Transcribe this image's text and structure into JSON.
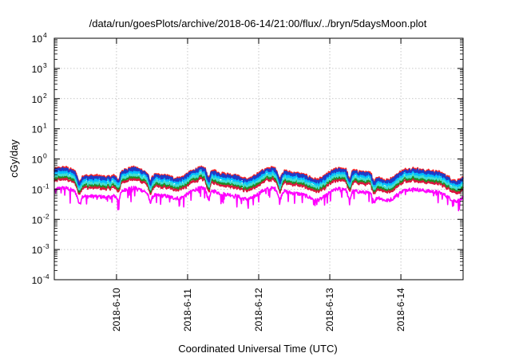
{
  "chart_data": {
    "type": "line",
    "title": "/data/run/goesPlots/archive/2018-06-14/21:00/flux/../bryn/5daysMoon.plot",
    "xlabel": "Coordinated Universal Time (UTC)",
    "ylabel": "cGy/day",
    "yscale": "log",
    "ylim": [
      0.0001,
      10000
    ],
    "xlim": [
      "2018-06-09T03:00",
      "2018-06-14T21:00"
    ],
    "grid": true,
    "legend": "none",
    "x_ticks": [
      "2018-6-10",
      "2018-6-11",
      "2018-6-12",
      "2018-6-13",
      "2018-6-14"
    ],
    "y_ticks": [
      {
        "base": "10",
        "exp": "-4"
      },
      {
        "base": "10",
        "exp": "-3"
      },
      {
        "base": "10",
        "exp": "-2"
      },
      {
        "base": "10",
        "exp": "-1"
      },
      {
        "base": "10",
        "exp": "0"
      },
      {
        "base": "10",
        "exp": "1"
      },
      {
        "base": "10",
        "exp": "2"
      },
      {
        "base": "10",
        "exp": "3"
      },
      {
        "base": "10",
        "exp": "4"
      }
    ],
    "dip_days": [
      {
        "day": 0.35,
        "depth": 0.5
      },
      {
        "day": 0.9,
        "depth": 0.4
      },
      {
        "day": 1.35,
        "depth": 0.45
      },
      {
        "day": 2.17,
        "depth": 0.55
      },
      {
        "day": 3.17,
        "depth": 0.55
      },
      {
        "day": 4.15,
        "depth": 0.55
      },
      {
        "day": 4.5,
        "depth": 0.4
      }
    ],
    "series": [
      {
        "color": "#ff00ff",
        "base": 0.075,
        "dips": true
      },
      {
        "color": "#dc143c",
        "base": 0.15
      },
      {
        "color": "#228b22",
        "base": 0.18
      },
      {
        "color": "#40e0d0",
        "base": 0.21
      },
      {
        "color": "#00bfff",
        "base": 0.26
      },
      {
        "color": "#ff2020",
        "base": 0.34
      },
      {
        "color": "#1e3cc8",
        "base": 0.31
      }
    ]
  }
}
